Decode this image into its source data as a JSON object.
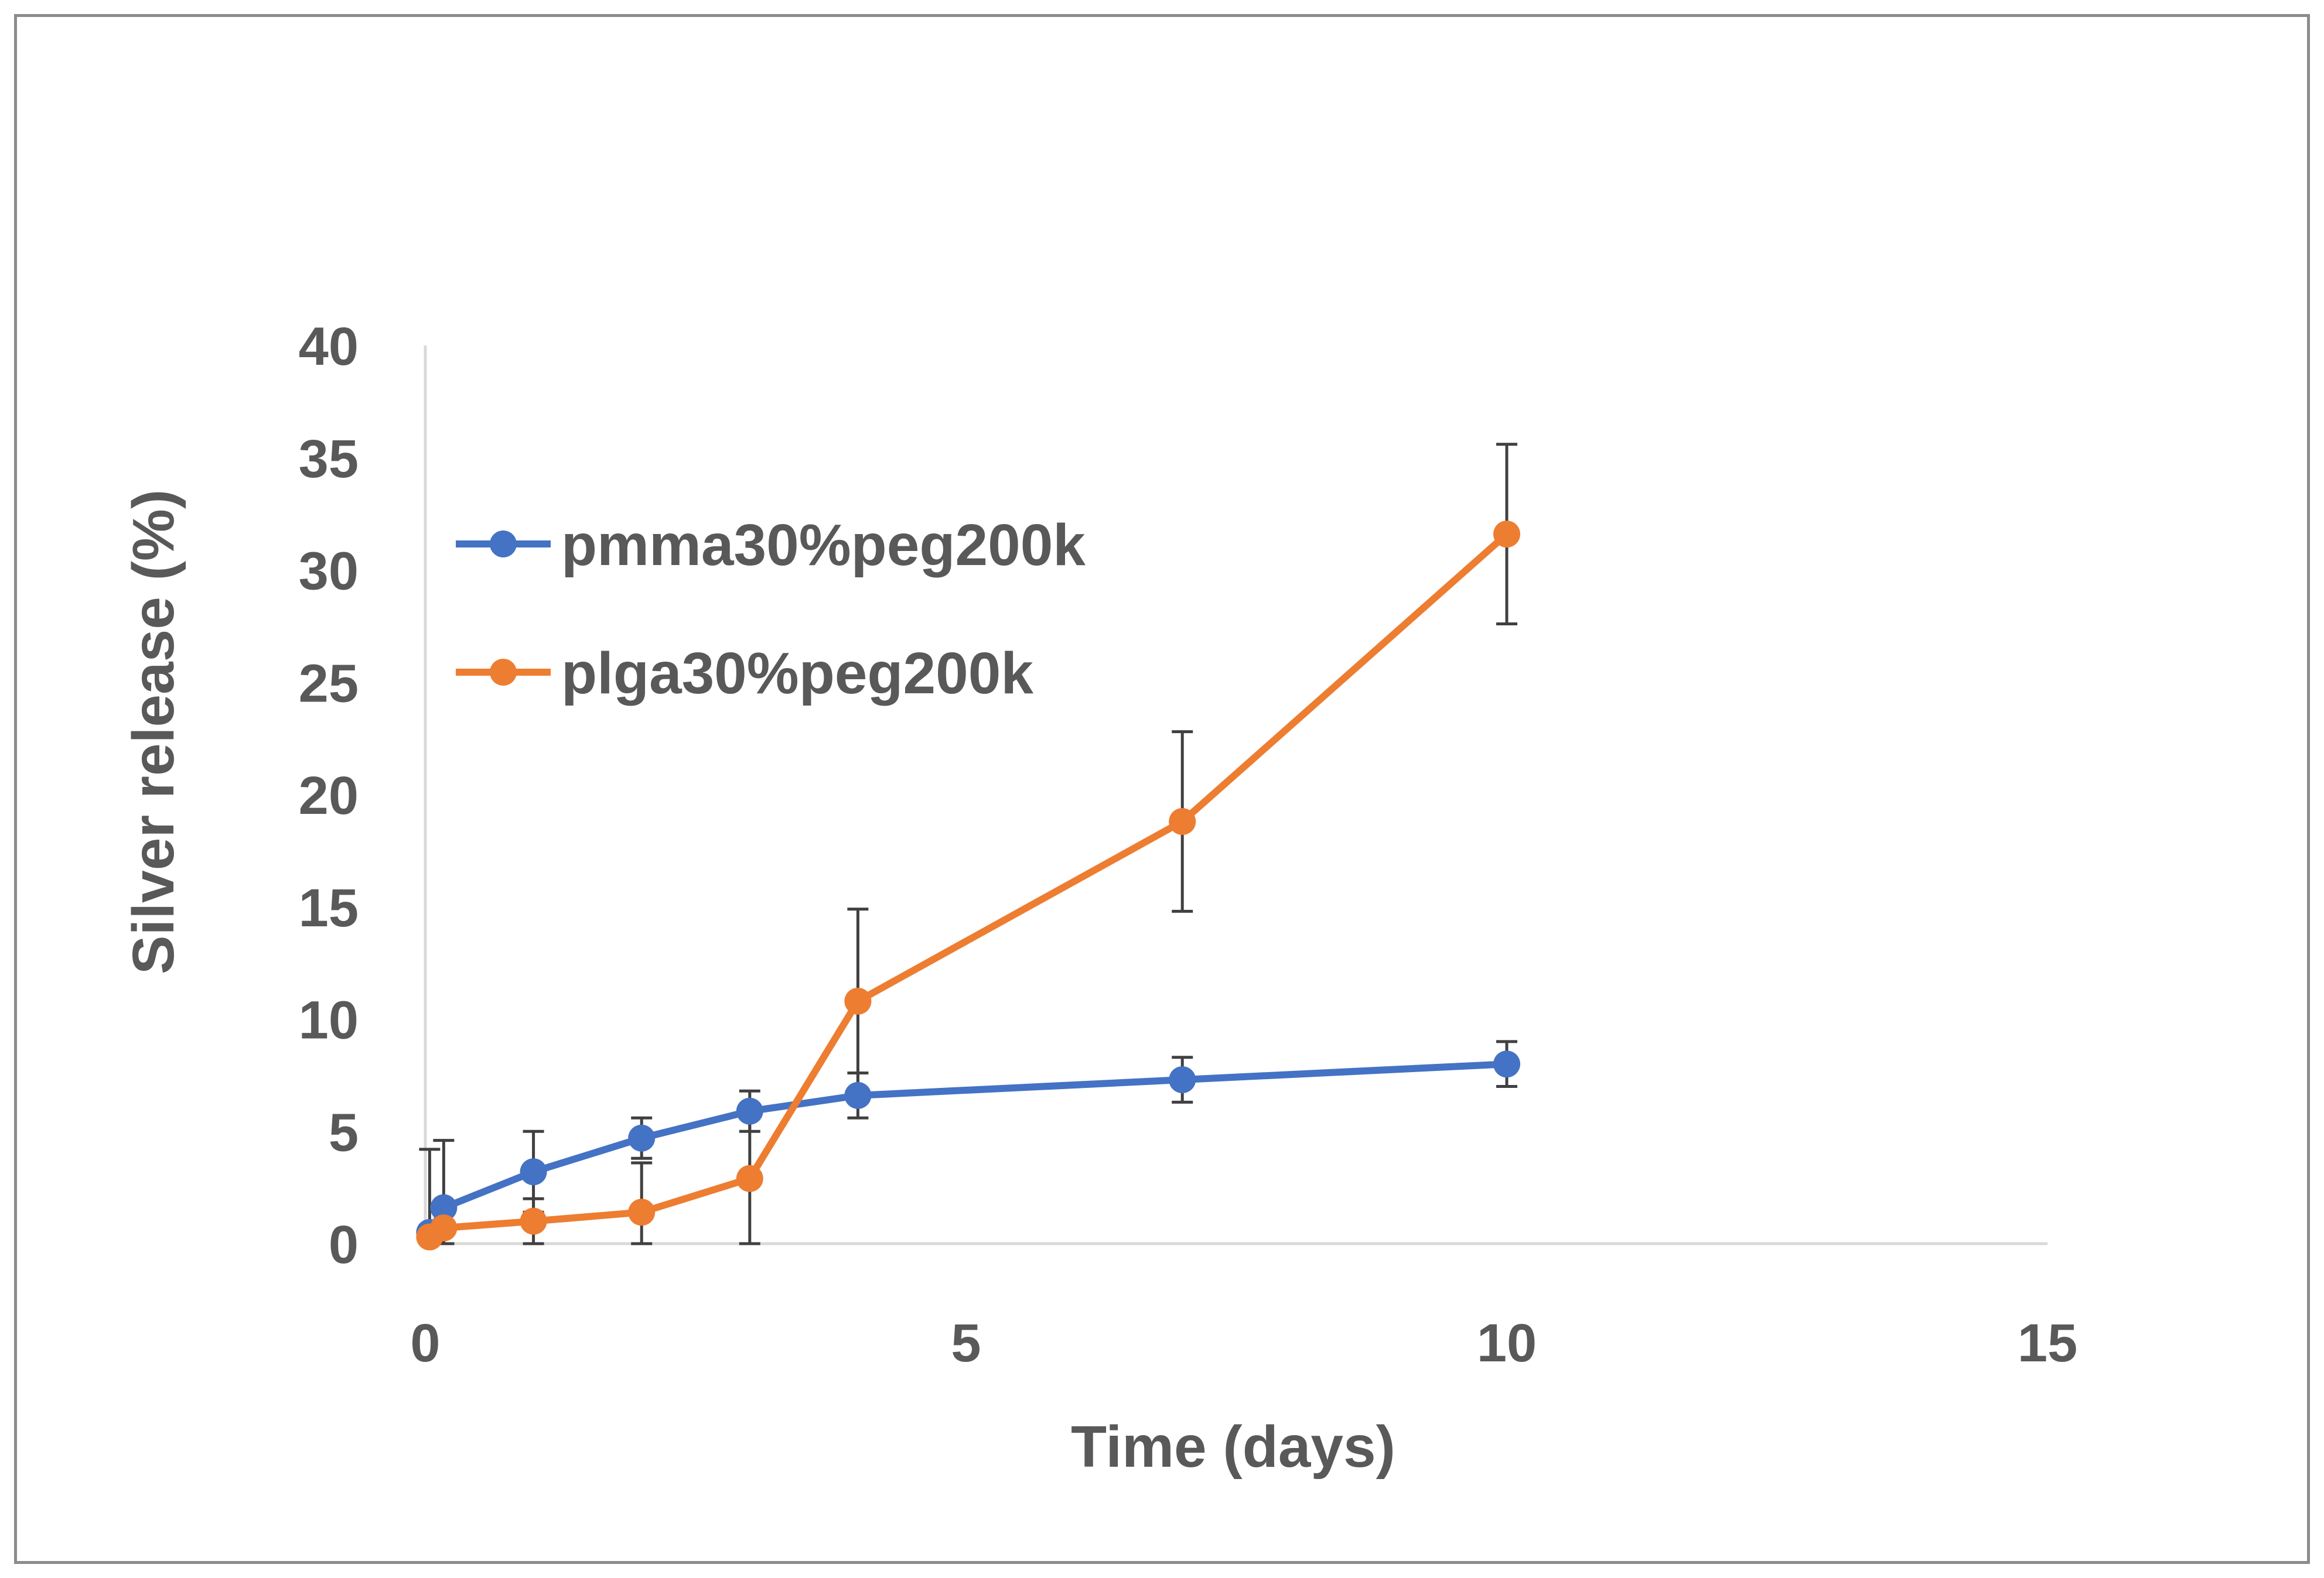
{
  "chart_data": {
    "type": "line",
    "title": "",
    "xlabel": "Time (days)",
    "ylabel": "Silver release (%)",
    "xlim": [
      0,
      15
    ],
    "ylim": [
      0,
      40
    ],
    "x_ticks": [
      "0",
      "5",
      "10",
      "15"
    ],
    "y_ticks": [
      "0",
      "5",
      "10",
      "15",
      "20",
      "25",
      "30",
      "35",
      "40"
    ],
    "grid": false,
    "legend_position": "upper-left",
    "series": [
      {
        "name": "pmma30%peg200k",
        "color": "#4472C4",
        "points": [
          {
            "x": 0.04,
            "y": 0.5,
            "err": 3.7
          },
          {
            "x": 0.17,
            "y": 1.6,
            "err": 3.0
          },
          {
            "x": 1,
            "y": 3.2,
            "err": 1.8
          },
          {
            "x": 2,
            "y": 4.7,
            "err": 0.9
          },
          {
            "x": 3,
            "y": 5.9,
            "err": 0.9
          },
          {
            "x": 4,
            "y": 6.6,
            "err": 1.0
          },
          {
            "x": 7,
            "y": 7.3,
            "err": 1.0
          },
          {
            "x": 10,
            "y": 8.0,
            "err": 1.0
          }
        ]
      },
      {
        "name": "plga30%peg200k",
        "color": "#ED7D31",
        "points": [
          {
            "x": 0.04,
            "y": 0.3,
            "err": 0.3
          },
          {
            "x": 0.17,
            "y": 0.7,
            "err": 0.7
          },
          {
            "x": 1,
            "y": 1.0,
            "err": 1.0
          },
          {
            "x": 2,
            "y": 1.4,
            "err": 2.2
          },
          {
            "x": 3,
            "y": 2.9,
            "err": 2.9
          },
          {
            "x": 4,
            "y": 10.8,
            "err": 4.1
          },
          {
            "x": 7,
            "y": 18.8,
            "err": 4.0
          },
          {
            "x": 10,
            "y": 31.6,
            "err": 4.0
          }
        ]
      }
    ]
  }
}
